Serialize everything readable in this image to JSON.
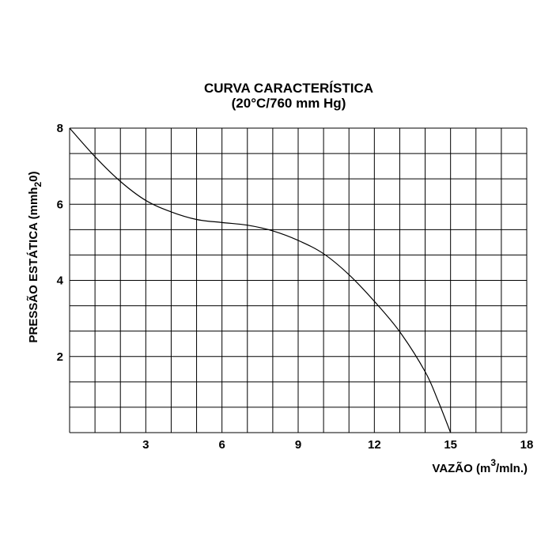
{
  "chart_data": {
    "type": "line",
    "title": "CURVA CARACTERÍSTICA",
    "subtitle": "(20°C/760 mm Hg)",
    "xlabel": {
      "prefix": "VAZÃO (m",
      "superscript": "3",
      "suffix": "/mln.)"
    },
    "ylabel": {
      "prefix": "PRESSÃO ESTÁTICA (mmh",
      "subscript": "2",
      "suffix": "0)"
    },
    "xlim": [
      0,
      18
    ],
    "ylim": [
      0,
      8
    ],
    "x_grid_step": 1,
    "y_grid_step": 0.6667,
    "x_ticks": [
      3,
      6,
      9,
      12,
      15,
      18
    ],
    "y_ticks": [
      2,
      4,
      6,
      8
    ],
    "grid": true,
    "series": [
      {
        "x": [
          0,
          1,
          2,
          3,
          4,
          5,
          6,
          7,
          8,
          9,
          10,
          11,
          12,
          13,
          14,
          14.5,
          15
        ],
        "y": [
          8.0,
          7.25,
          6.6,
          6.1,
          5.8,
          5.6,
          5.52,
          5.45,
          5.3,
          5.05,
          4.7,
          4.15,
          3.45,
          2.65,
          1.6,
          0.85,
          0.0
        ]
      }
    ]
  }
}
